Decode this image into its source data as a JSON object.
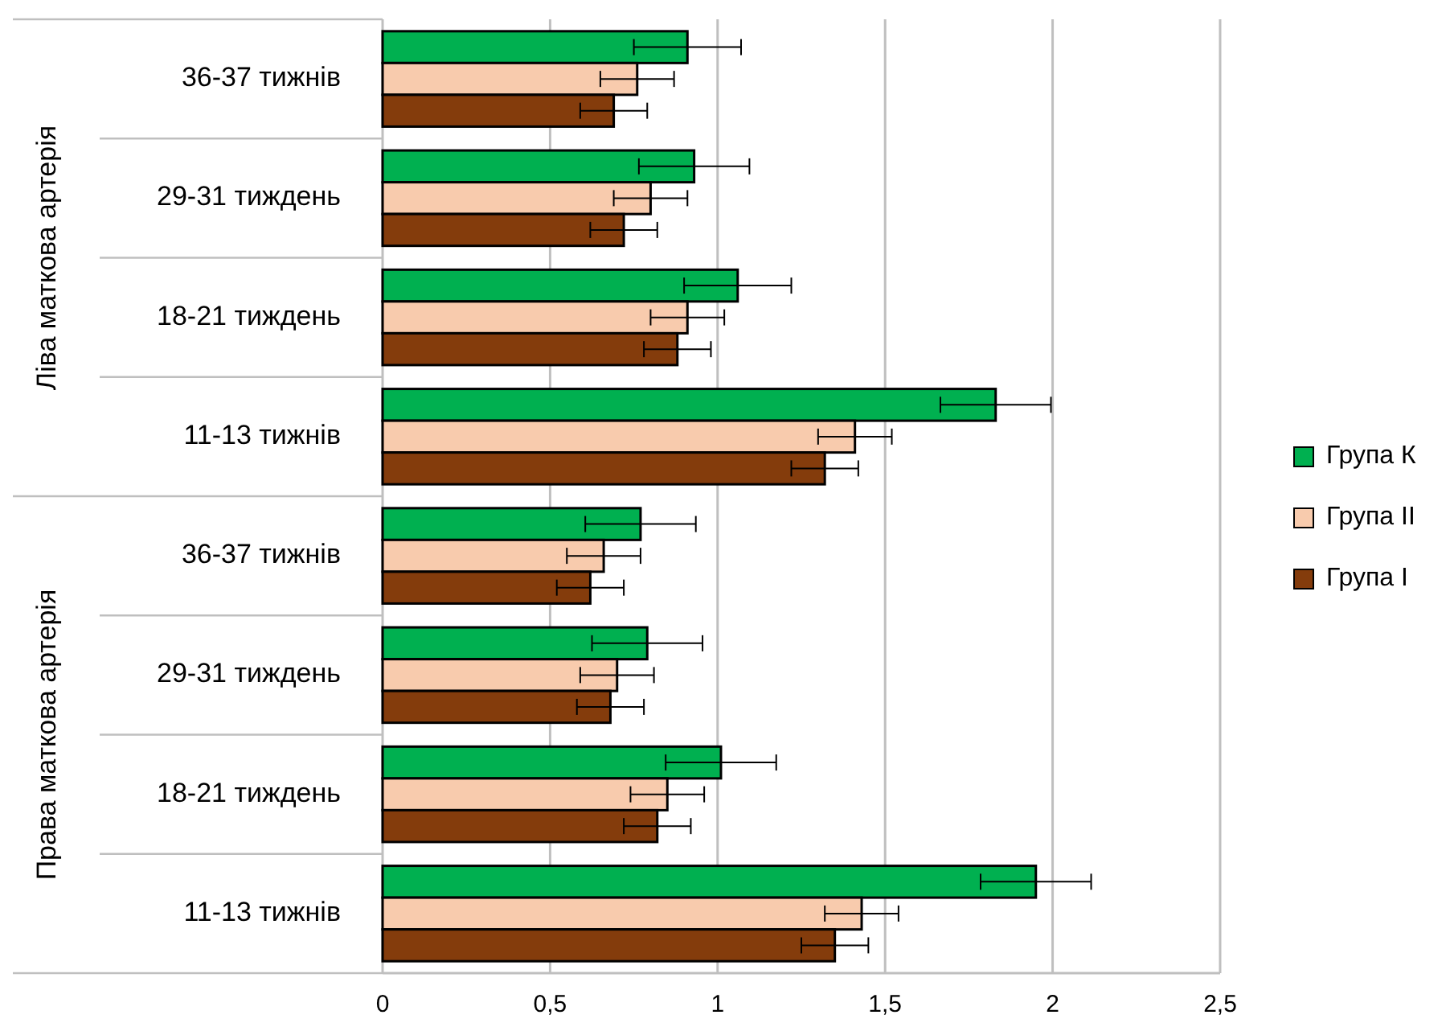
{
  "chart_data": {
    "type": "bar",
    "orientation": "horizontal",
    "categories": [
      "36-37 тижнів",
      "29-31 тиждень",
      "18-21 тиждень",
      "11-13 тижнів",
      "36-37 тижнів",
      "29-31 тиждень",
      "18-21 тиждень",
      "11-13 тижнів"
    ],
    "series": [
      {
        "name": "Група К",
        "color": "#00b050",
        "values": [
          0.91,
          0.93,
          1.06,
          1.83,
          0.77,
          0.79,
          1.01,
          1.95
        ],
        "errors": [
          0.16,
          0.165,
          0.16,
          0.165,
          0.165,
          0.165,
          0.165,
          0.165
        ]
      },
      {
        "name": "Група II",
        "color": "#f8cbad",
        "values": [
          0.76,
          0.8,
          0.91,
          1.41,
          0.66,
          0.7,
          0.85,
          1.43
        ],
        "errors": [
          0.11,
          0.11,
          0.11,
          0.11,
          0.11,
          0.11,
          0.11,
          0.11
        ]
      },
      {
        "name": "Група I",
        "color": "#843c0c",
        "values": [
          0.69,
          0.72,
          0.88,
          1.32,
          0.62,
          0.68,
          0.82,
          1.35
        ],
        "errors": [
          0.1,
          0.1,
          0.1,
          0.1,
          0.1,
          0.1,
          0.1,
          0.1
        ]
      }
    ],
    "annotations": [
      "Ліва маткова артерія",
      "Права маткова артерія"
    ],
    "xlim": [
      0,
      2.5
    ],
    "xticks": [
      0,
      {
        "value": 0.5,
        "label": "0,5"
      },
      1,
      {
        "value": 1.5,
        "label": "1,5"
      },
      2,
      {
        "value": 2.5,
        "label": "2,5"
      }
    ],
    "grid": "x",
    "legend": "right"
  }
}
